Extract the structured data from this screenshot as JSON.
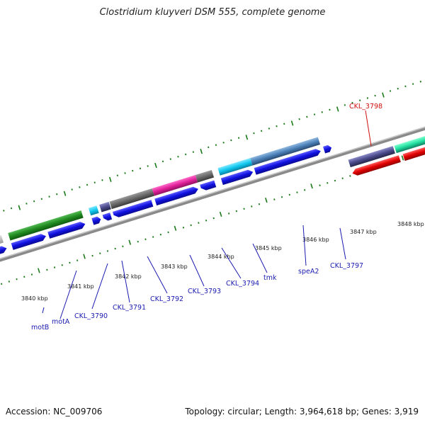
{
  "title": "Clostridium kluyveri DSM 555, complete genome",
  "footer": {
    "accession": "Accession: NC_009706",
    "summary": "Topology: circular; Length: 3,964,618 bp; Genes: 3,919"
  },
  "kbp_labels": [
    "3840 kbp",
    "3841 kbp",
    "3842 kbp",
    "3843 kbp",
    "3844 kbp",
    "3845 kbp",
    "3846 kbp",
    "3847 kbp",
    "3848 kbp"
  ],
  "gene_labels": [
    {
      "text": "motB",
      "color": "#1a1ab0"
    },
    {
      "text": "motA",
      "color": "#1a1ab0"
    },
    {
      "text": "CKL_3790",
      "color": "#1a1ab0"
    },
    {
      "text": "CKL_3791",
      "color": "#1a1ab0"
    },
    {
      "text": "CKL_3792",
      "color": "#1a1ab0"
    },
    {
      "text": "CKL_3793",
      "color": "#1a1ab0"
    },
    {
      "text": "CKL_3794",
      "color": "#1a1ab0"
    },
    {
      "text": "tmk",
      "color": "#1a1ab0"
    },
    {
      "text": "speA2",
      "color": "#1a1ab0"
    },
    {
      "text": "CKL_3797",
      "color": "#1a1ab0"
    },
    {
      "text": "CKL_3798",
      "color": "#d01010"
    }
  ],
  "colors": {
    "backbone": "#8a8a8a",
    "tick": "#1a7a1a",
    "cds_forward": "#1010e0",
    "cds_reverse": "#e00000",
    "cog_green": "#208a20",
    "cog_gray": "#6a6a6a",
    "cog_pink": "#e0209a",
    "cog_cyan": "#10c8f0",
    "cog_steel": "#4a80b8",
    "cog_purple": "#4a4a8a",
    "cog_teal": "#20e0a0"
  }
}
